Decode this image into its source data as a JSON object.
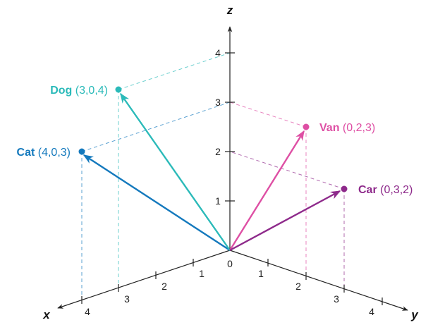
{
  "axes": {
    "x_label": "x",
    "y_label": "y",
    "z_label": "z",
    "origin_label": "0",
    "x_ticks": [
      "1",
      "2",
      "3",
      "4"
    ],
    "y_ticks": [
      "1",
      "2",
      "3",
      "4"
    ],
    "z_ticks": [
      "1",
      "2",
      "3",
      "4"
    ]
  },
  "vectors": [
    {
      "name": "Cat",
      "coords_text": "(4,0,3)",
      "x": 4,
      "y": 0,
      "z": 3,
      "color": "#1479BD"
    },
    {
      "name": "Dog",
      "coords_text": "(3,0,4)",
      "x": 3,
      "y": 0,
      "z": 4,
      "color": "#2BBAB9"
    },
    {
      "name": "Van",
      "coords_text": "(0,2,3)",
      "x": 0,
      "y": 2,
      "z": 3,
      "color": "#DE4FA4"
    },
    {
      "name": "Car",
      "coords_text": "(0,3,2)",
      "x": 0,
      "y": 3,
      "z": 2,
      "color": "#8E2A8B"
    }
  ],
  "colors": {
    "axis": "#222222",
    "guide_blue": "#1479BD",
    "guide_teal": "#2BBAB9",
    "guide_pink": "#DE4FA4",
    "guide_purple": "#8E2A8B"
  }
}
